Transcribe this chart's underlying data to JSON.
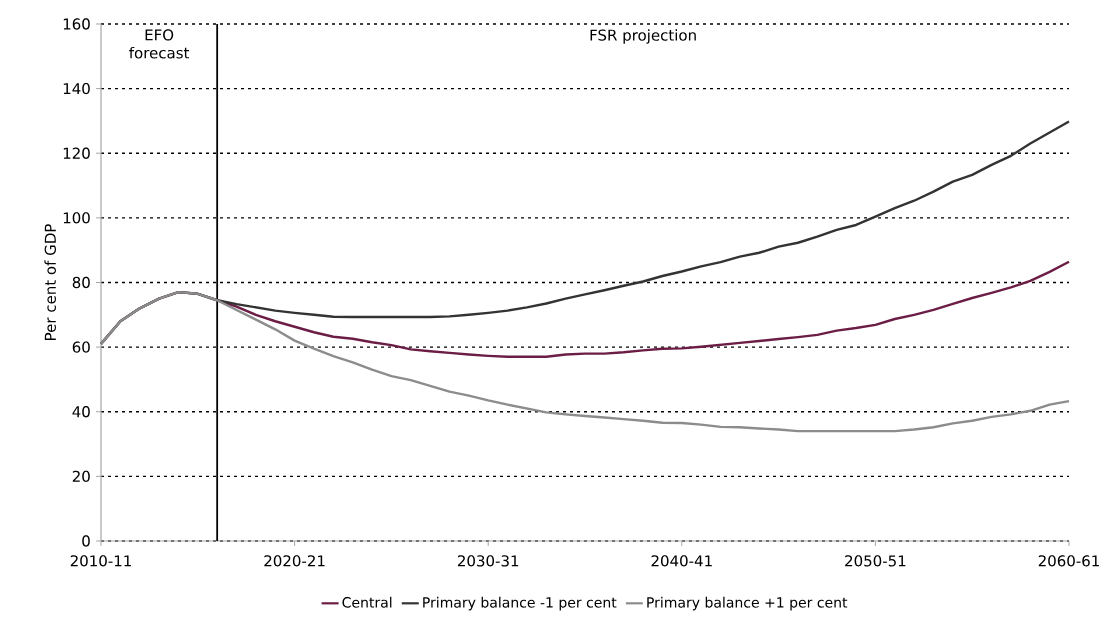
{
  "chart_data": {
    "type": "line",
    "ylabel": "Per cent of GDP",
    "categories": [
      "2010-11",
      null,
      null,
      null,
      null,
      null,
      null,
      null,
      null,
      null,
      "2020-21",
      null,
      null,
      null,
      null,
      null,
      null,
      null,
      null,
      null,
      "2030-31",
      null,
      null,
      null,
      null,
      null,
      null,
      null,
      null,
      null,
      "2040-41",
      null,
      null,
      null,
      null,
      null,
      null,
      null,
      null,
      null,
      "2050-51",
      null,
      null,
      null,
      null,
      null,
      null,
      null,
      null,
      null,
      "2060-61"
    ],
    "series": [
      {
        "name": "Central",
        "color": "#6b1d45",
        "values": [
          61,
          68,
          72,
          75,
          77,
          76.5,
          74.5,
          72.5,
          70,
          68,
          66.3,
          64.6,
          63.2,
          62.6,
          61.5,
          60.6,
          59.3,
          58.7,
          58.2,
          57.7,
          57.3,
          57,
          57,
          57,
          57.7,
          58,
          58,
          58.4,
          59,
          59.5,
          59.6,
          60.1,
          60.7,
          61.3,
          61.9,
          62.5,
          63.1,
          63.8,
          65.1,
          65.9,
          66.9,
          68.7,
          70,
          71.5,
          73.4,
          75.2,
          76.8,
          78.5,
          80.5,
          83.3,
          86.4
        ]
      },
      {
        "name": "Primary balance -1 per cent",
        "color": "#333333",
        "values": [
          61,
          68,
          72,
          75,
          77,
          76.5,
          74.5,
          73.3,
          72.3,
          71.3,
          70.6,
          70,
          69.4,
          69.3,
          69.3,
          69.3,
          69.3,
          69.3,
          69.5,
          70,
          70.6,
          71.3,
          72.3,
          73.5,
          75,
          76.3,
          77.6,
          79,
          80.3,
          82,
          83.4,
          85,
          86.3,
          88,
          89.2,
          91.1,
          92.3,
          94.2,
          96.3,
          97.8,
          100.4,
          103,
          105.3,
          108.1,
          111.2,
          113.3,
          116.4,
          119.2,
          123,
          126.4,
          129.8
        ]
      },
      {
        "name": "Primary balance +1 per cent",
        "color": "#8c8c8c",
        "values": [
          61,
          68,
          72,
          75,
          77,
          76.5,
          74.5,
          71.5,
          68.5,
          65.5,
          62,
          59.5,
          57.2,
          55.3,
          53,
          51,
          49.8,
          48,
          46.2,
          45,
          43.5,
          42.2,
          41,
          39.8,
          39.2,
          38.7,
          38.2,
          37.7,
          37.2,
          36.6,
          36.5,
          36,
          35.3,
          35.2,
          34.8,
          34.5,
          34,
          34,
          34,
          34,
          34,
          34,
          34.5,
          35.2,
          36.4,
          37.2,
          38.4,
          39.2,
          40.3,
          42.2,
          43.3
        ]
      }
    ],
    "ylim": [
      0,
      160
    ],
    "yticks": [
      0,
      20,
      40,
      60,
      80,
      100,
      120,
      140,
      160
    ],
    "grid": "y",
    "legend": "bottom",
    "marker": "none",
    "line_style": "solid",
    "annotations": [
      "EFO forecast",
      "FSR projection"
    ]
  }
}
